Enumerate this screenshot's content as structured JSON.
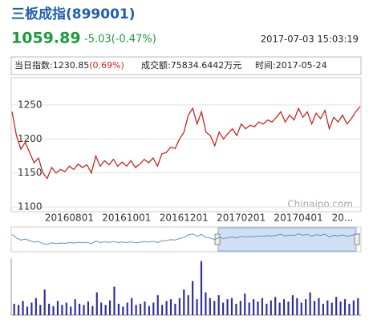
{
  "header": {
    "title": "三板成指(899001)",
    "price": "1059.89",
    "change": "-5.03(-0.47%)",
    "datetime": "2017-07-03 15:03:19"
  },
  "info": {
    "index_label": "当日指数:1230.85",
    "index_change": "(0.69%)",
    "turnover": "成交额:75834.6442万元",
    "time": "时间:2017-05-24"
  },
  "chart_data": [
    {
      "type": "line",
      "watermark": "Chinaipo.com",
      "color": "#c8281e",
      "grid": true,
      "categories": [
        null,
        null,
        null,
        null,
        null,
        null,
        null,
        null,
        null,
        null,
        null,
        null,
        null,
        "20160801",
        null,
        null,
        null,
        null,
        null,
        null,
        null,
        null,
        null,
        null,
        null,
        null,
        "20161001",
        null,
        null,
        null,
        null,
        null,
        null,
        null,
        null,
        null,
        null,
        null,
        null,
        "20161201",
        null,
        null,
        null,
        null,
        null,
        null,
        null,
        null,
        null,
        null,
        null,
        null,
        "20170201",
        null,
        null,
        null,
        null,
        null,
        null,
        null,
        null,
        null,
        null,
        null,
        null,
        "20170401",
        null,
        null,
        null,
        null,
        null,
        null,
        null,
        null,
        null,
        "20...",
        null,
        null,
        null,
        null
      ],
      "values": [
        1240,
        1205,
        1185,
        1195,
        1180,
        1165,
        1172,
        1150,
        1142,
        1158,
        1150,
        1155,
        1152,
        1160,
        1155,
        1163,
        1158,
        1162,
        1150,
        1175,
        1160,
        1168,
        1162,
        1170,
        1160,
        1166,
        1160,
        1168,
        1158,
        1163,
        1170,
        1165,
        1172,
        1160,
        1178,
        1180,
        1188,
        1186,
        1200,
        1210,
        1235,
        1245,
        1222,
        1240,
        1210,
        1205,
        1190,
        1210,
        1200,
        1208,
        1215,
        1205,
        1222,
        1215,
        1220,
        1218,
        1225,
        1222,
        1228,
        1225,
        1232,
        1240,
        1225,
        1235,
        1228,
        1245,
        1232,
        1240,
        1222,
        1238,
        1230,
        1242,
        1215,
        1232,
        1225,
        1235,
        1222,
        1230,
        1240,
        1248
      ],
      "ylim": [
        1093,
        1290
      ],
      "yticks": [
        1100,
        1150,
        1200,
        1250
      ]
    },
    {
      "type": "bar",
      "color": "#2e2ea0",
      "ylim": [
        0,
        100
      ],
      "values": [
        20,
        18,
        25,
        15,
        22,
        30,
        18,
        45,
        20,
        16,
        25,
        18,
        22,
        15,
        28,
        20,
        18,
        24,
        16,
        40,
        22,
        18,
        26,
        50,
        20,
        15,
        22,
        30,
        18,
        20,
        24,
        16,
        22,
        35,
        18,
        25,
        28,
        20,
        30,
        45,
        35,
        60,
        28,
        95,
        40,
        30,
        25,
        35,
        22,
        28,
        30,
        20,
        25,
        38,
        22,
        28,
        24,
        30,
        20,
        26,
        32,
        22,
        28,
        24,
        35,
        30,
        22,
        28,
        40,
        25,
        30,
        20,
        26,
        22,
        32,
        24,
        28,
        20,
        26,
        30
      ]
    }
  ]
}
